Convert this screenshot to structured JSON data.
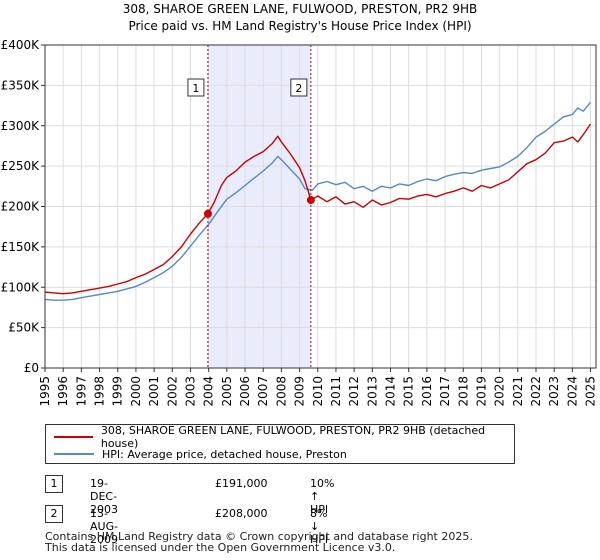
{
  "chart_data": {
    "type": "line",
    "title": "308, SHAROE GREEN LANE, FULWOOD, PRESTON, PR2 9HB",
    "subtitle": "Price paid vs. HM Land Registry's House Price Index (HPI)",
    "xlabel": "",
    "ylabel": "",
    "xlim": [
      1995.0,
      2025.3
    ],
    "ylim": [
      0,
      400000
    ],
    "grid": true,
    "y_ticks": [
      {
        "value": 0,
        "label": "£0"
      },
      {
        "value": 50000,
        "label": "£50K"
      },
      {
        "value": 100000,
        "label": "£100K"
      },
      {
        "value": 150000,
        "label": "£150K"
      },
      {
        "value": 200000,
        "label": "£200K"
      },
      {
        "value": 250000,
        "label": "£250K"
      },
      {
        "value": 300000,
        "label": "£300K"
      },
      {
        "value": 350000,
        "label": "£350K"
      },
      {
        "value": 400000,
        "label": "£400K"
      }
    ],
    "x_ticks": [
      "1995",
      "1996",
      "1997",
      "1998",
      "1999",
      "2000",
      "2001",
      "2002",
      "2003",
      "2004",
      "2005",
      "2006",
      "2007",
      "2008",
      "2009",
      "2010",
      "2011",
      "2012",
      "2013",
      "2014",
      "2015",
      "2016",
      "2017",
      "2018",
      "2019",
      "2020",
      "2021",
      "2022",
      "2023",
      "2024",
      "2025"
    ],
    "shaded_region": {
      "x_start": 2003.96,
      "x_end": 2009.62,
      "color": "#e8ecfb"
    },
    "series": [
      {
        "name": "308, SHAROE GREEN LANE, FULWOOD, PRESTON, PR2 9HB (detached house)",
        "color": "#cc0000",
        "x": [
          1995.0,
          1995.5,
          1996.0,
          1996.5,
          1997.0,
          1997.5,
          1998.0,
          1998.5,
          1999.0,
          1999.5,
          2000.0,
          2000.5,
          2001.0,
          2001.5,
          2002.0,
          2002.5,
          2003.0,
          2003.5,
          2003.96,
          2004.3,
          2004.7,
          2005.0,
          2005.5,
          2006.0,
          2006.5,
          2007.0,
          2007.5,
          2007.8,
          2008.0,
          2008.5,
          2009.0,
          2009.3,
          2009.62,
          2010.0,
          2010.5,
          2011.0,
          2011.5,
          2012.0,
          2012.5,
          2013.0,
          2013.5,
          2014.0,
          2014.5,
          2015.0,
          2015.5,
          2016.0,
          2016.5,
          2017.0,
          2017.5,
          2018.0,
          2018.5,
          2019.0,
          2019.5,
          2020.0,
          2020.5,
          2021.0,
          2021.5,
          2022.0,
          2022.5,
          2023.0,
          2023.5,
          2024.0,
          2024.3,
          2024.6,
          2025.0
        ],
        "values": [
          94000,
          93000,
          92000,
          93000,
          95000,
          97000,
          99000,
          101000,
          104000,
          107000,
          112000,
          116000,
          122000,
          128000,
          138000,
          150000,
          166000,
          180000,
          191000,
          205000,
          226000,
          236000,
          244000,
          255000,
          262000,
          268000,
          278000,
          287000,
          280000,
          265000,
          248000,
          232000,
          208000,
          213000,
          206000,
          212000,
          203000,
          206000,
          199000,
          208000,
          202000,
          205000,
          210000,
          209000,
          213000,
          215000,
          212000,
          216000,
          219000,
          223000,
          219000,
          226000,
          223000,
          228000,
          233000,
          243000,
          253000,
          258000,
          266000,
          279000,
          281000,
          286000,
          280000,
          289000,
          302000
        ]
      },
      {
        "name": "HPI: Average price, detached house, Preston",
        "color": "#5588cc",
        "x": [
          1995.0,
          1995.5,
          1996.0,
          1996.5,
          1997.0,
          1997.5,
          1998.0,
          1998.5,
          1999.0,
          1999.5,
          2000.0,
          2000.5,
          2001.0,
          2001.5,
          2002.0,
          2002.5,
          2003.0,
          2003.5,
          2004.0,
          2004.5,
          2005.0,
          2005.5,
          2006.0,
          2006.5,
          2007.0,
          2007.5,
          2007.8,
          2008.0,
          2008.5,
          2009.0,
          2009.3,
          2009.7,
          2010.0,
          2010.5,
          2011.0,
          2011.5,
          2012.0,
          2012.5,
          2013.0,
          2013.5,
          2014.0,
          2014.5,
          2015.0,
          2015.5,
          2016.0,
          2016.5,
          2017.0,
          2017.5,
          2018.0,
          2018.5,
          2019.0,
          2019.5,
          2020.0,
          2020.5,
          2021.0,
          2021.5,
          2022.0,
          2022.5,
          2023.0,
          2023.5,
          2024.0,
          2024.3,
          2024.6,
          2025.0
        ],
        "values": [
          85000,
          84000,
          84000,
          85000,
          87000,
          89000,
          91000,
          93000,
          95000,
          98000,
          101000,
          106000,
          112000,
          118000,
          126000,
          137000,
          151000,
          165000,
          178000,
          194000,
          209000,
          217000,
          226000,
          235000,
          244000,
          254000,
          262000,
          258000,
          246000,
          234000,
          222000,
          220000,
          228000,
          231000,
          227000,
          230000,
          222000,
          225000,
          219000,
          225000,
          223000,
          228000,
          226000,
          231000,
          234000,
          232000,
          237000,
          240000,
          242000,
          241000,
          245000,
          247000,
          249000,
          255000,
          262000,
          273000,
          286000,
          293000,
          302000,
          311000,
          314000,
          322000,
          318000,
          329000
        ]
      }
    ],
    "annotations": [
      {
        "label": "1",
        "x": 2003.96,
        "marker_value": 191000
      },
      {
        "label": "2",
        "x": 2009.62,
        "marker_value": 208000
      }
    ]
  },
  "legend": {
    "items": [
      {
        "label": "308, SHAROE GREEN LANE, FULWOOD, PRESTON, PR2 9HB (detached house)",
        "color": "#cc0000"
      },
      {
        "label": "HPI: Average price, detached house, Preston",
        "color": "#5588cc"
      }
    ]
  },
  "transactions": [
    {
      "num": "1",
      "date": "19-DEC-2003",
      "price": "£191,000",
      "hpi": "10% ↑ HPI"
    },
    {
      "num": "2",
      "date": "13-AUG-2009",
      "price": "£208,000",
      "hpi": "8% ↓ HPI"
    }
  ],
  "footer": {
    "line1": "Contains HM Land Registry data © Crown copyright and database right 2025.",
    "line2": "This data is licensed under the Open Government Licence v3.0."
  }
}
